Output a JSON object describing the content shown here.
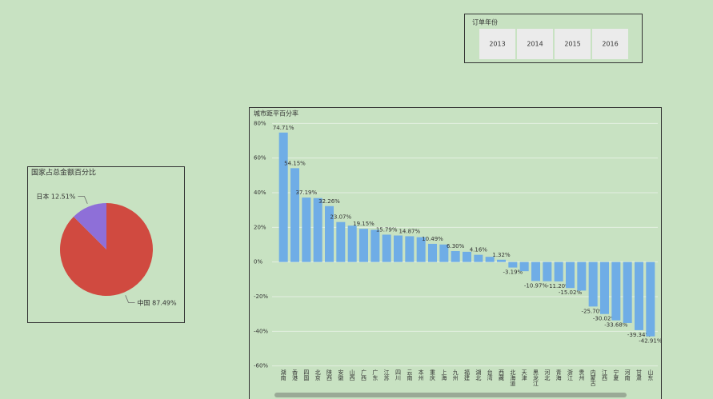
{
  "slicer": {
    "title": "订单年份",
    "items": [
      "2013",
      "2014",
      "2015",
      "2016"
    ]
  },
  "chart_data": [
    {
      "type": "pie",
      "title": "国家占总金额百分比",
      "categories": [
        "中国",
        "日本"
      ],
      "values": [
        87.49,
        12.51
      ],
      "value_labels": [
        "87.49%",
        "12.51%"
      ],
      "colors": [
        "#d04a40",
        "#8e6fd8"
      ]
    },
    {
      "type": "bar",
      "title": "城市距平百分率",
      "categories": [
        "湖南",
        "香港",
        "四国",
        "北京",
        "陕西",
        "安徽",
        "山西",
        "广西",
        "广东",
        "江苏",
        "四川",
        "云南",
        "本州",
        "重庆",
        "上海",
        "九州",
        "福建",
        "湖北",
        "台湾",
        "西藏",
        "北海道",
        "天津",
        "黑龙江",
        "河北",
        "青海",
        "浙江",
        "贵州",
        "内蒙古",
        "江西",
        "宁夏",
        "河南",
        "甘肃",
        "山东"
      ],
      "values": [
        74.71,
        54.15,
        37.19,
        36.9,
        32.26,
        23.07,
        21.0,
        19.15,
        18.6,
        15.79,
        15.3,
        14.87,
        14.3,
        10.49,
        10.1,
        6.3,
        5.9,
        4.16,
        3.0,
        1.32,
        -3.19,
        -5.3,
        -10.97,
        -11.1,
        -11.2,
        -15.02,
        -16.5,
        -25.7,
        -30.02,
        -33.68,
        -35.2,
        -39.34,
        -42.91
      ],
      "value_labels": [
        "74.71%",
        "54.15%",
        "37.19%",
        null,
        "32.26%",
        "23.07%",
        null,
        "19.15%",
        null,
        "15.79%",
        null,
        "14.87%",
        null,
        "10.49%",
        null,
        "6.30%",
        null,
        "4.16%",
        null,
        "1.32%",
        "-3.19%",
        null,
        "-10.97%",
        null,
        "-11.20%",
        "-15.02%",
        null,
        "-25.70%",
        "-30.02%",
        "-33.68%",
        null,
        "-39.34%",
        "-42.91%"
      ],
      "color": "#6fade6",
      "grid": true,
      "ylim": [
        -68,
        82
      ],
      "yticks": [
        {
          "value": 80,
          "label": "80%"
        },
        {
          "value": 60,
          "label": "60%"
        },
        {
          "value": 40,
          "label": "40%"
        },
        {
          "value": 20,
          "label": "20%"
        },
        {
          "value": 0,
          "label": "0%"
        },
        {
          "value": -20,
          "label": "-20%"
        },
        {
          "value": -40,
          "label": "-40%"
        },
        {
          "value": -60,
          "label": "-60%"
        }
      ]
    }
  ]
}
